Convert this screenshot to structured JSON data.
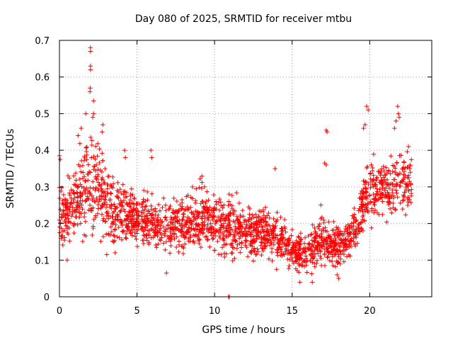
{
  "chart_data": {
    "type": "scatter",
    "title": "Day 080 of 2025, SRMTID for receiver mtbu",
    "xlabel": "GPS time / hours",
    "ylabel": "SRMTID / TECUs",
    "xlim": [
      0,
      24
    ],
    "ylim": [
      0,
      0.7
    ],
    "xticks": [
      0,
      5,
      10,
      15,
      20
    ],
    "yticks": [
      0,
      0.1,
      0.2,
      0.3,
      0.4,
      0.5,
      0.6,
      0.7
    ],
    "xtick_labels": [
      "0",
      "5",
      "10",
      "15",
      "20"
    ],
    "ytick_labels": [
      "0",
      "0.1",
      "0.2",
      "0.3",
      "0.4",
      "0.5",
      "0.6",
      "0.7"
    ],
    "grid": true,
    "marker": "+",
    "color": "#ff0000",
    "profile": [
      [
        0.0,
        0.23,
        0.06
      ],
      [
        0.5,
        0.23,
        0.06
      ],
      [
        1.0,
        0.26,
        0.07
      ],
      [
        1.5,
        0.28,
        0.08
      ],
      [
        2.0,
        0.33,
        0.1
      ],
      [
        2.5,
        0.3,
        0.09
      ],
      [
        3.0,
        0.25,
        0.08
      ],
      [
        3.5,
        0.23,
        0.06
      ],
      [
        4.0,
        0.22,
        0.06
      ],
      [
        5.0,
        0.22,
        0.05
      ],
      [
        6.0,
        0.2,
        0.05
      ],
      [
        7.0,
        0.19,
        0.05
      ],
      [
        8.0,
        0.2,
        0.05
      ],
      [
        9.0,
        0.22,
        0.06
      ],
      [
        10.0,
        0.21,
        0.06
      ],
      [
        11.0,
        0.19,
        0.06
      ],
      [
        12.0,
        0.18,
        0.05
      ],
      [
        13.0,
        0.18,
        0.05
      ],
      [
        14.0,
        0.16,
        0.05
      ],
      [
        15.0,
        0.13,
        0.04
      ],
      [
        16.0,
        0.12,
        0.04
      ],
      [
        17.0,
        0.16,
        0.05
      ],
      [
        18.0,
        0.13,
        0.04
      ],
      [
        18.5,
        0.15,
        0.04
      ],
      [
        19.0,
        0.18,
        0.05
      ],
      [
        19.5,
        0.24,
        0.06
      ],
      [
        20.0,
        0.3,
        0.07
      ],
      [
        21.0,
        0.28,
        0.07
      ],
      [
        22.0,
        0.32,
        0.07
      ],
      [
        22.7,
        0.29,
        0.06
      ]
    ],
    "n_points": 2100,
    "highlights": [
      {
        "x": 2.0,
        "y": 0.68
      },
      {
        "x": 2.0,
        "y": 0.67
      },
      {
        "x": 2.0,
        "y": 0.63
      },
      {
        "x": 2.0,
        "y": 0.62
      },
      {
        "x": 1.98,
        "y": 0.57
      },
      {
        "x": 1.97,
        "y": 0.56
      },
      {
        "x": 2.2,
        "y": 0.535
      },
      {
        "x": 2.2,
        "y": 0.5
      },
      {
        "x": 2.15,
        "y": 0.49
      },
      {
        "x": 1.7,
        "y": 0.5
      },
      {
        "x": 1.4,
        "y": 0.46
      },
      {
        "x": 1.2,
        "y": 0.44
      },
      {
        "x": 2.8,
        "y": 0.47
      },
      {
        "x": 2.75,
        "y": 0.45
      },
      {
        "x": 0.0,
        "y": 0.385
      },
      {
        "x": 0.05,
        "y": 0.375
      },
      {
        "x": 4.2,
        "y": 0.4
      },
      {
        "x": 4.25,
        "y": 0.38
      },
      {
        "x": 5.9,
        "y": 0.4
      },
      {
        "x": 5.95,
        "y": 0.38
      },
      {
        "x": 13.9,
        "y": 0.35
      },
      {
        "x": 17.2,
        "y": 0.455
      },
      {
        "x": 17.25,
        "y": 0.45
      },
      {
        "x": 17.1,
        "y": 0.365
      },
      {
        "x": 17.2,
        "y": 0.36
      },
      {
        "x": 19.8,
        "y": 0.52
      },
      {
        "x": 19.9,
        "y": 0.51
      },
      {
        "x": 19.7,
        "y": 0.47
      },
      {
        "x": 19.6,
        "y": 0.46
      },
      {
        "x": 21.8,
        "y": 0.52
      },
      {
        "x": 21.85,
        "y": 0.5
      },
      {
        "x": 21.9,
        "y": 0.49
      },
      {
        "x": 21.7,
        "y": 0.48
      },
      {
        "x": 21.6,
        "y": 0.46
      },
      {
        "x": 22.5,
        "y": 0.41
      },
      {
        "x": 22.6,
        "y": 0.36
      },
      {
        "x": 15.5,
        "y": 0.04
      },
      {
        "x": 16.3,
        "y": 0.04
      },
      {
        "x": 18.0,
        "y": 0.05
      },
      {
        "x": 17.9,
        "y": 0.06
      },
      {
        "x": 10.9,
        "y": 0.0
      },
      {
        "x": 10.95,
        "y": 0.0
      },
      {
        "x": 0.5,
        "y": 0.1
      },
      {
        "x": 6.9,
        "y": 0.065
      },
      {
        "x": 14.0,
        "y": 0.075
      }
    ]
  }
}
